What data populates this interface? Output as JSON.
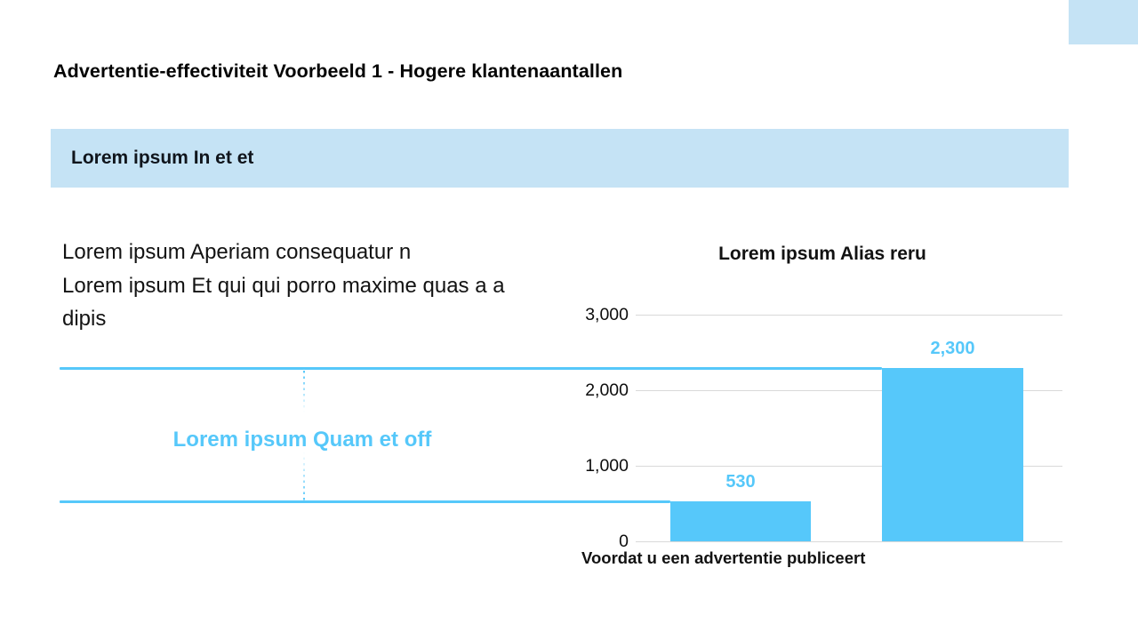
{
  "page": {
    "title": "Advertentie-effectiviteit Voorbeeld 1 - Hogere klantenaantallen"
  },
  "banner": {
    "label": "Lorem ipsum In et et"
  },
  "colors": {
    "accent_blue": "#56C8FA",
    "light_blue": "#C5E3F5",
    "gridline_gray": "#D9D9D9",
    "text_dark": "#111111"
  },
  "left_panel": {
    "lines": [
      "Lorem ipsum Aperiam consequatur n",
      "Lorem ipsum Et qui qui porro maxime quas a a",
      "dipis"
    ],
    "callout_label": "Lorem ipsum Quam et off"
  },
  "chart_data": {
    "type": "bar",
    "title": "Lorem ipsum Alias reru",
    "categories": [
      "Voordat u een advertentie publiceert",
      ""
    ],
    "values": [
      530,
      2300
    ],
    "value_labels": [
      "530",
      "2,300"
    ],
    "y_ticks": [
      "3,000",
      "2,000",
      "1,000",
      "0"
    ],
    "ylim": [
      0,
      3000
    ],
    "xlabel": "",
    "ylabel": "",
    "grid": true,
    "legend": "none",
    "bar_color": "#56C8FA"
  }
}
